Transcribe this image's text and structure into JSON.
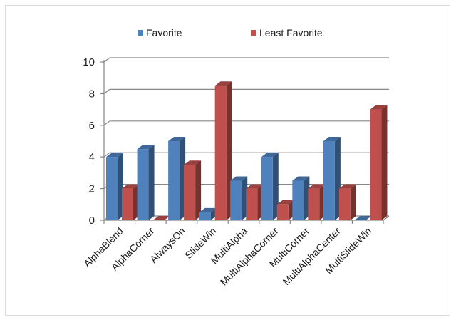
{
  "chart_data": {
    "type": "bar",
    "categories": [
      "AlphaBlend",
      "AlphaCorner",
      "AlwaysOn",
      "SlideWin",
      "MultiAlpha",
      "MultiAlphaCorner",
      "MultiCorner",
      "MultiAlphaCenter",
      "MultiSlideWin"
    ],
    "series": [
      {
        "name": "Favorite",
        "color": "#4f81bd",
        "values": [
          4,
          4.5,
          5,
          0.5,
          2.5,
          4,
          2.5,
          5,
          0
        ]
      },
      {
        "name": "Least Favorite",
        "color": "#c0504d",
        "values": [
          2,
          0,
          3.5,
          8.5,
          2,
          1,
          2,
          2,
          7
        ]
      }
    ],
    "yticks": [
      "0",
      "2",
      "4",
      "6",
      "8",
      "10"
    ],
    "ylim": [
      0,
      10
    ],
    "grid": true,
    "legend": "top",
    "title": "",
    "xlabel": "",
    "ylabel": ""
  }
}
